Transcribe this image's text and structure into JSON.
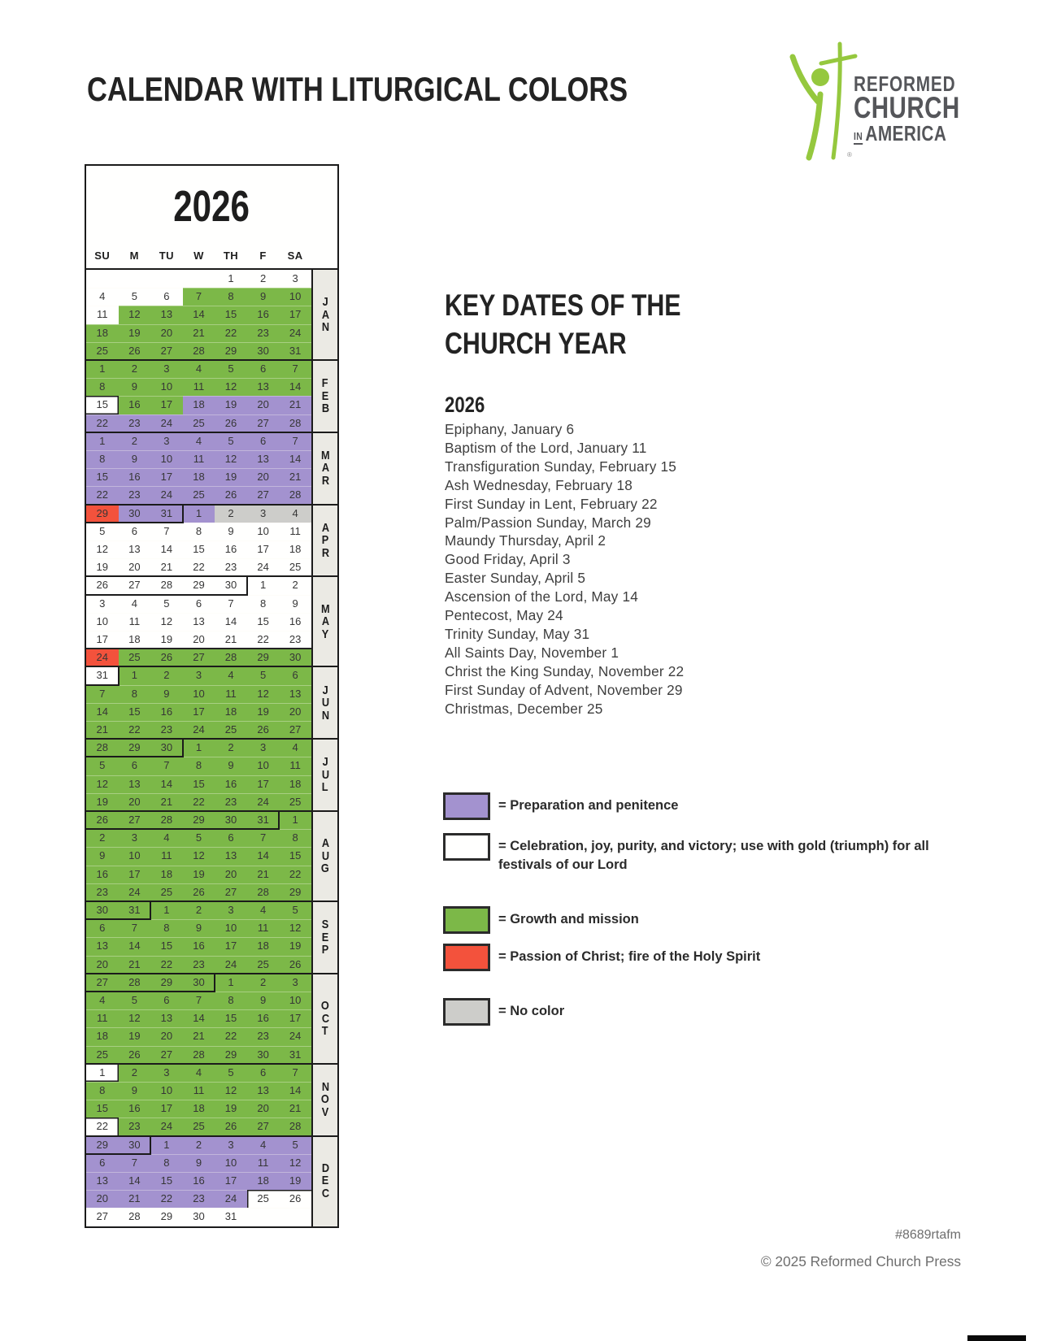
{
  "page": {
    "title": "CALENDAR WITH LITURGICAL COLORS",
    "footer": {
      "code": "#8689rtafm",
      "copyright": "© 2025 Reformed Church Press"
    }
  },
  "logo": {
    "line1": "REFORMED",
    "line2": "CHURCH",
    "in": "IN",
    "line3": "AMERICA",
    "registered": "®"
  },
  "colors": {
    "green": "#7cb848",
    "purple": "#a392cf",
    "red": "#f3523c",
    "gray": "#cdcdca",
    "white": "#fffffe",
    "labelbg": "#ebeae4",
    "line": "#1b1b1b",
    "logo_green": "#95c83e",
    "logo_gray": "#55565a"
  },
  "calendar": {
    "year": "2026",
    "day_headers": [
      "SU",
      "M",
      "TU",
      "W",
      "TH",
      "F",
      "SA"
    ],
    "month_blocks": [
      {
        "label": "JAN",
        "rows": 5
      },
      {
        "label": "FEB",
        "rows": 4
      },
      {
        "label": "MAR",
        "rows": 4
      },
      {
        "label": "APR",
        "rows": 4
      },
      {
        "label": "MAY",
        "rows": 5
      },
      {
        "label": "JUN",
        "rows": 4
      },
      {
        "label": "JUL",
        "rows": 4
      },
      {
        "label": "AUG",
        "rows": 5
      },
      {
        "label": "SEP",
        "rows": 4
      },
      {
        "label": "OCT",
        "rows": 5
      },
      {
        "label": "NOV",
        "rows": 4
      },
      {
        "label": "DEC",
        "rows": 5
      }
    ],
    "rows": [
      [
        "||||1|2|3",
        "WWWWWWW"
      ],
      [
        "4|5|6|7|8|9|10",
        "WWWGGGG"
      ],
      [
        "11|12|13|14|15|16|17",
        "WGGGGGG"
      ],
      [
        "18|19|20|21|22|23|24",
        "GGGGGGG"
      ],
      [
        "25|26|27|28|29|30|31",
        "GGGGGGG"
      ],
      [
        "1|2|3|4|5|6|7",
        "GGGGGGG"
      ],
      [
        "8|9|10|11|12|13|14",
        "GGGGGGG"
      ],
      [
        "15|16|17|18|19|20|21",
        "WGGPPPP"
      ],
      [
        "22|23|24|25|26|27|28",
        "PPPPPPP"
      ],
      [
        "1|2|3|4|5|6|7",
        "PPPPPPP"
      ],
      [
        "8|9|10|11|12|13|14",
        "PPPPPPP"
      ],
      [
        "15|16|17|18|19|20|21",
        "PPPPPPP"
      ],
      [
        "22|23|24|25|26|27|28",
        "PPPPPPP"
      ],
      [
        "29|30|31|1|2|3|4",
        "RPPPNNN"
      ],
      [
        "5|6|7|8|9|10|11",
        "WWWWWWW"
      ],
      [
        "12|13|14|15|16|17|18",
        "WWWWWWW"
      ],
      [
        "19|20|21|22|23|24|25",
        "WWWWWWW"
      ],
      [
        "26|27|28|29|30|1|2",
        "WWWWWWW"
      ],
      [
        "3|4|5|6|7|8|9",
        "WWWWWWW"
      ],
      [
        "10|11|12|13|14|15|16",
        "WWWWWWW"
      ],
      [
        "17|18|19|20|21|22|23",
        "WWWWWWW"
      ],
      [
        "24|25|26|27|28|29|30",
        "RGGGGGG"
      ],
      [
        "31|1|2|3|4|5|6",
        "WGGGGGG"
      ],
      [
        "7|8|9|10|11|12|13",
        "GGGGGGG"
      ],
      [
        "14|15|16|17|18|19|20",
        "GGGGGGG"
      ],
      [
        "21|22|23|24|25|26|27",
        "GGGGGGG"
      ],
      [
        "28|29|30|1|2|3|4",
        "GGGGGGG"
      ],
      [
        "5|6|7|8|9|10|11",
        "GGGGGGG"
      ],
      [
        "12|13|14|15|16|17|18",
        "GGGGGGG"
      ],
      [
        "19|20|21|22|23|24|25",
        "GGGGGGG"
      ],
      [
        "26|27|28|29|30|31|1",
        "GGGGGGG"
      ],
      [
        "2|3|4|5|6|7|8",
        "GGGGGGG"
      ],
      [
        "9|10|11|12|13|14|15",
        "GGGGGGG"
      ],
      [
        "16|17|18|19|20|21|22",
        "GGGGGGG"
      ],
      [
        "23|24|25|26|27|28|29",
        "GGGGGGG"
      ],
      [
        "30|31|1|2|3|4|5",
        "GGGGGGG"
      ],
      [
        "6|7|8|9|10|11|12",
        "GGGGGGG"
      ],
      [
        "13|14|15|16|17|18|19",
        "GGGGGGG"
      ],
      [
        "20|21|22|23|24|25|26",
        "GGGGGGG"
      ],
      [
        "27|28|29|30|1|2|3",
        "GGGGGGG"
      ],
      [
        "4|5|6|7|8|9|10",
        "GGGGGGG"
      ],
      [
        "11|12|13|14|15|16|17",
        "GGGGGGG"
      ],
      [
        "18|19|20|21|22|23|24",
        "GGGGGGG"
      ],
      [
        "25|26|27|28|29|30|31",
        "GGGGGGG"
      ],
      [
        "1|2|3|4|5|6|7",
        "WGGGGGG"
      ],
      [
        "8|9|10|11|12|13|14",
        "GGGGGGG"
      ],
      [
        "15|16|17|18|19|20|21",
        "GGGGGGG"
      ],
      [
        "22|23|24|25|26|27|28",
        "WGGGGGG"
      ],
      [
        "29|30|1|2|3|4|5",
        "PPPPPPP"
      ],
      [
        "6|7|8|9|10|11|12",
        "PPPPPPP"
      ],
      [
        "13|14|15|16|17|18|19",
        "PPPPPPP"
      ],
      [
        "20|21|22|23|24|25|26",
        "PPPPPWW"
      ],
      [
        "27|28|29|30|31||",
        "WWWWWWW"
      ]
    ],
    "boundaries": [
      {
        "r": 6,
        "s": 0
      },
      {
        "r": 10,
        "s": 0
      },
      {
        "r": 14,
        "s": 3
      },
      {
        "r": 18,
        "s": 5
      },
      {
        "r": 23,
        "s": 1
      },
      {
        "r": 27,
        "s": 3
      },
      {
        "r": 31,
        "s": 6
      },
      {
        "r": 36,
        "s": 2
      },
      {
        "r": 40,
        "s": 4
      },
      {
        "r": 45,
        "s": 0
      },
      {
        "r": 49,
        "s": 2
      }
    ],
    "thin_line_rows": [
      22
    ],
    "outlines": [
      {
        "r": 8,
        "c": 1,
        "e": [
          "top",
          "right",
          "bottom"
        ]
      },
      {
        "r": 45,
        "c": 1,
        "e": [
          "right",
          "bottom"
        ]
      },
      {
        "r": 48,
        "c": 1,
        "e": [
          "top",
          "right"
        ]
      },
      {
        "r": 52,
        "c": 6,
        "e": [
          "top",
          "left"
        ]
      },
      {
        "r": 52,
        "c": 7,
        "e": [
          "top"
        ]
      }
    ]
  },
  "key_dates": {
    "heading_line1": "KEY DATES OF THE",
    "heading_line2": "CHURCH YEAR",
    "year": "2026",
    "dates": [
      "Epiphany, January 6",
      "Baptism of the Lord, January 11",
      "Transfiguration Sunday, February 15",
      "Ash Wednesday, February 18",
      "First Sunday in Lent, February 22",
      "Palm/Passion Sunday, March 29",
      "Maundy Thursday, April 2",
      "Good Friday, April 3",
      "Easter Sunday, April 5",
      "Ascension of the Lord, May 14",
      "Pentecost, May 24",
      "Trinity Sunday, May 31",
      "All Saints Day, November 1",
      "Christ the King Sunday, November 22",
      "First Sunday of Advent, November 29",
      "Christmas, December 25"
    ]
  },
  "legend": {
    "items": [
      {
        "color_key": "purple",
        "label": "= Preparation and penitence"
      },
      {
        "color_key": "white",
        "label": "= Celebration, joy, purity, and victory; use with gold (triumph) for all festivals of our Lord"
      },
      {
        "color_key": "green",
        "label": "= Growth and mission"
      },
      {
        "color_key": "red",
        "label": "= Passion of Christ; fire of the Holy Spirit"
      },
      {
        "color_key": "gray",
        "label": "= No color"
      }
    ]
  }
}
